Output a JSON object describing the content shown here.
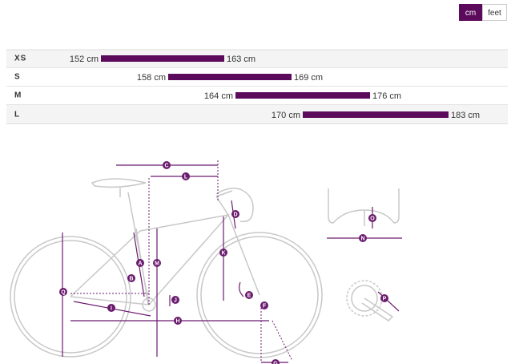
{
  "unit_toggle": {
    "options": [
      "cm",
      "feet"
    ],
    "selected": 0
  },
  "chart_data": {
    "type": "range",
    "categories": [
      "XS",
      "S",
      "M",
      "L"
    ],
    "color": "#5b0a5c",
    "series": [
      {
        "values": [
          152,
          158,
          164,
          170
        ],
        "value_labels": [
          "152 cm",
          "158 cm",
          "164 cm",
          "170 cm"
        ]
      },
      {
        "values": [
          163,
          169,
          176,
          183
        ],
        "value_labels": [
          "163 cm",
          "169 cm",
          "176 cm",
          "183 cm"
        ]
      }
    ]
  },
  "diagram": {
    "labels": [
      "A",
      "B",
      "C",
      "D",
      "E",
      "F",
      "G",
      "H",
      "I",
      "J",
      "K",
      "L",
      "M",
      "N",
      "O",
      "P",
      "Q"
    ]
  }
}
